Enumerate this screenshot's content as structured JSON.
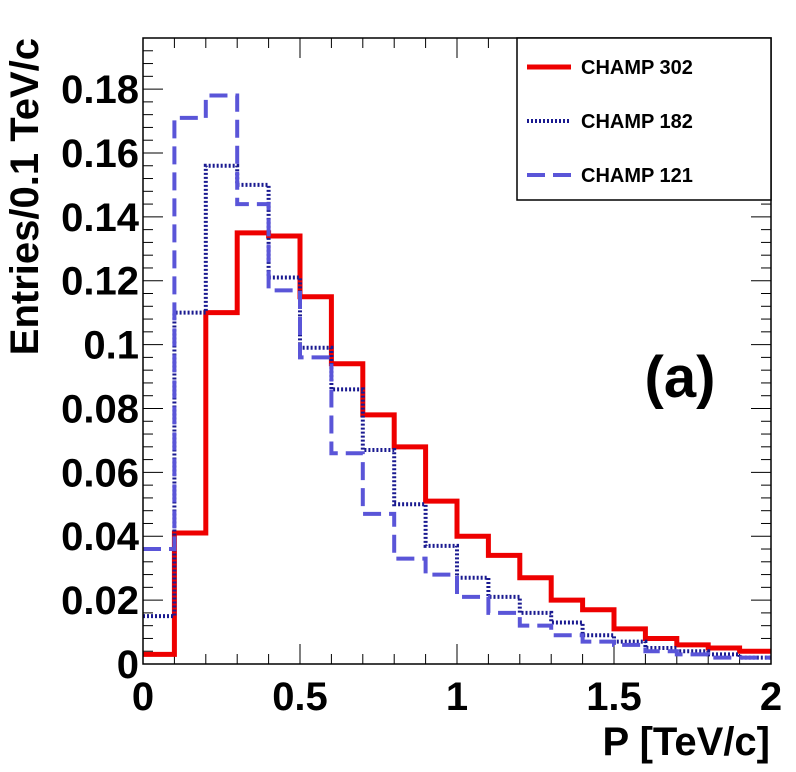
{
  "chart_data": {
    "type": "histogram",
    "title": "",
    "xlabel": "P [TeV/c]",
    "ylabel": "Entries/0.1 TeV/c",
    "xlim": [
      0,
      2
    ],
    "ylim": [
      0,
      0.196
    ],
    "bin_edges": [
      0,
      0.1,
      0.2,
      0.3,
      0.4,
      0.5,
      0.6,
      0.7,
      0.8,
      0.9,
      1.0,
      1.1,
      1.2,
      1.3,
      1.4,
      1.5,
      1.6,
      1.7,
      1.8,
      1.9,
      2.0
    ],
    "x_ticks": [
      {
        "value": 0,
        "label": "0"
      },
      {
        "value": 0.5,
        "label": "0.5"
      },
      {
        "value": 1,
        "label": "1"
      },
      {
        "value": 1.5,
        "label": "1.5"
      },
      {
        "value": 2,
        "label": "2"
      }
    ],
    "y_ticks": [
      {
        "value": 0,
        "label": "0"
      },
      {
        "value": 0.02,
        "label": "0.02"
      },
      {
        "value": 0.04,
        "label": "0.04"
      },
      {
        "value": 0.06,
        "label": "0.06"
      },
      {
        "value": 0.08,
        "label": "0.08"
      },
      {
        "value": 0.1,
        "label": "0.1"
      },
      {
        "value": 0.12,
        "label": "0.12"
      },
      {
        "value": 0.14,
        "label": "0.14"
      },
      {
        "value": 0.16,
        "label": "0.16"
      },
      {
        "value": 0.18,
        "label": "0.18"
      }
    ],
    "series": [
      {
        "name": "CHAMP 302",
        "color": "#ee0000",
        "style": "solid",
        "values": [
          0.003,
          0.041,
          0.11,
          0.135,
          0.134,
          0.115,
          0.094,
          0.078,
          0.068,
          0.051,
          0.04,
          0.034,
          0.027,
          0.02,
          0.017,
          0.011,
          0.008,
          0.006,
          0.005,
          0.004
        ]
      },
      {
        "name": "CHAMP 182",
        "color": "#1a1a90",
        "style": "dotted",
        "values": [
          0.015,
          0.11,
          0.156,
          0.15,
          0.121,
          0.099,
          0.086,
          0.067,
          0.05,
          0.037,
          0.027,
          0.021,
          0.016,
          0.013,
          0.009,
          0.007,
          0.005,
          0.004,
          0.003,
          0.002
        ]
      },
      {
        "name": "CHAMP 121",
        "color": "#5a55d8",
        "style": "dashed",
        "values": [
          0.036,
          0.171,
          0.178,
          0.144,
          0.117,
          0.096,
          0.066,
          0.047,
          0.033,
          0.028,
          0.021,
          0.016,
          0.012,
          0.009,
          0.007,
          0.006,
          0.004,
          0.003,
          0.002,
          0.002
        ]
      }
    ],
    "legend_position": "top-right",
    "annotation": "(a)"
  }
}
